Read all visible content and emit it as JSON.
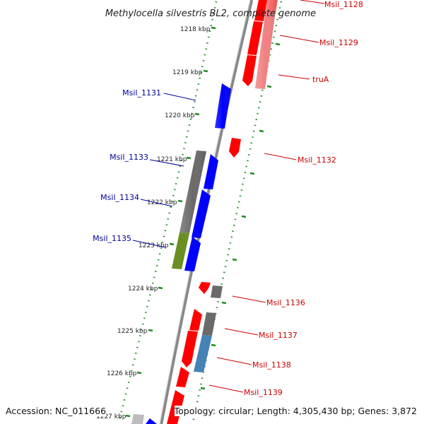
{
  "title": "Methylocella silvestris BL2, complete genome",
  "footer": {
    "accession": "Accession: NC_011666",
    "summary": "Topology: circular; Length: 4,305,430 bp; Genes: 3,872"
  },
  "colors": {
    "forward": "#ff0000",
    "reverse": "#0000ff",
    "rna": "#f08080",
    "pseudo": "#6a6a6a",
    "grey_light": "#bdbdbd",
    "olive": "#6b8e23",
    "steelblue": "#4682b4",
    "tick": "#228b22",
    "backbone": "#808080",
    "label_forward": "#cc0000",
    "label_reverse": "#000099"
  },
  "ticks": [
    "1218 kbp",
    "1219 kbp",
    "1220 kbp",
    "1221 kbp",
    "1222 kbp",
    "1223 kbp",
    "1224 kbp",
    "1225 kbp",
    "1226 kbp",
    "1227 kbp"
  ],
  "gene_labels_forward": [
    "Msil_1128",
    "Msil_1129",
    "truA",
    "Msil_1132",
    "Msil_1136",
    "Msil_1137",
    "Msil_1138",
    "Msil_1139"
  ],
  "gene_labels_reverse": [
    "Msil_1131",
    "Msil_1133",
    "Msil_1134",
    "Msil_1135"
  ]
}
